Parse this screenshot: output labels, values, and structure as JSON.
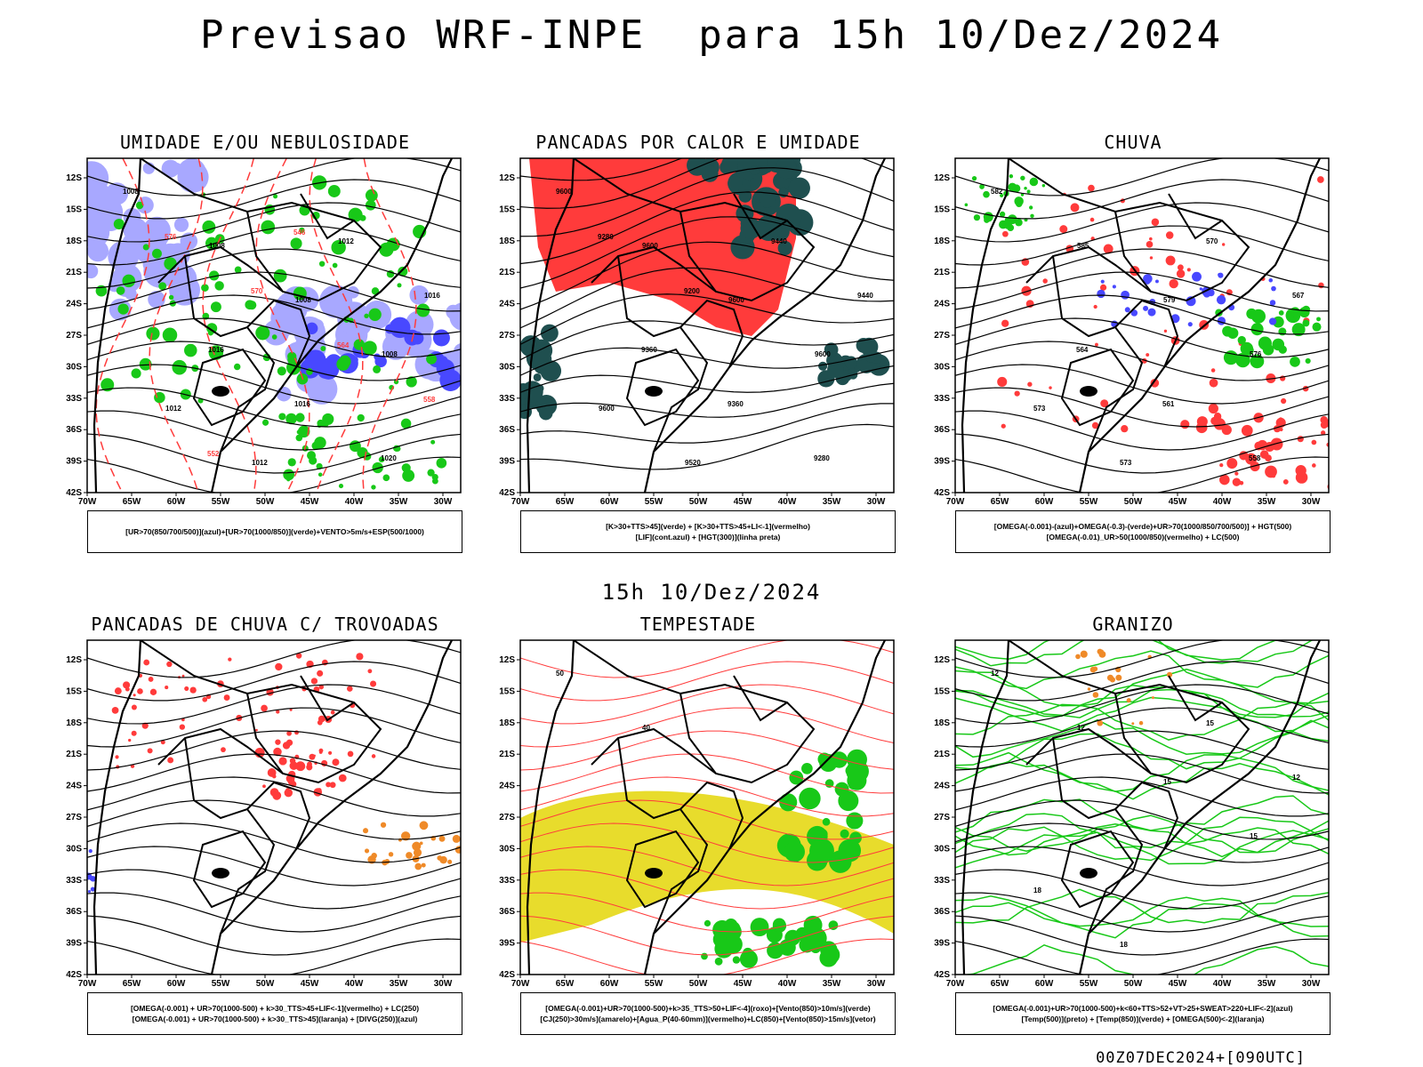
{
  "header": {
    "title": "Previsao WRF-INPE  para 15h 10/Dez/2024",
    "middle_time": "15h 10/Dez/2024",
    "run_stamp": "00Z07DEC2024+[090UTC]"
  },
  "axes": {
    "lat_labels": [
      "12S",
      "15S",
      "18S",
      "21S",
      "24S",
      "27S",
      "30S",
      "33S",
      "36S",
      "39S",
      "42S"
    ],
    "lon_labels": [
      "70W",
      "65W",
      "60W",
      "55W",
      "50W",
      "45W",
      "40W",
      "35W",
      "30W"
    ]
  },
  "panels": [
    {
      "id": "umidade",
      "title": "UMIDADE E/OU NEBULOSIDADE",
      "legend": [
        "[UR>70(850/700/500)](azul)+[UR>70(1000/850)](verde)+VENTO>5m/s+ESP(500/1000)"
      ],
      "contour_labels": [
        "1008",
        "1008",
        "1008",
        "1008",
        "1012",
        "1012",
        "1012",
        "1016",
        "1016",
        "1016",
        "1020",
        "576",
        "570",
        "564",
        "558",
        "552",
        "546"
      ]
    },
    {
      "id": "pancadas_calor",
      "title": "PANCADAS POR CALOR E UMIDADE",
      "legend": [
        "[K>30+TTS>45](verde) + [K>30+TTS>45+LI<-1](vermelho)",
        "[LIF](cont.azul) + [HGT(300)](linha preta)"
      ],
      "contour_labels": [
        "9600",
        "9600",
        "9600",
        "9600",
        "9600",
        "9520",
        "9440",
        "9440",
        "9360",
        "9360",
        "9280",
        "9280",
        "9200"
      ]
    },
    {
      "id": "chuva",
      "title": "CHUVA",
      "legend": [
        "[OMEGA(-0.001)-(azul)+OMEGA(-0.3)-(verde)+UR>70(1000/850/700/500)] + HGT(500)",
        "[OMEGA(-0.01)_UR>50(1000/850)(vermelho) + LC(500)"
      ],
      "contour_labels": [
        "582",
        "585",
        "579",
        "576",
        "573",
        "573",
        "570",
        "567",
        "564",
        "561",
        "558"
      ]
    },
    {
      "id": "pancadas_trovoadas",
      "title": "PANCADAS DE CHUVA C/ TROVOADAS",
      "legend": [
        "[OMEGA(-0.001) + UR>70(1000-500) + k>30_TTS>45+LIF<-1](vermelho) + LC(250)",
        "[OMEGA(-0.001) + UR>70(1000-500) + k>30_TTS>45](laranja) + [DIVG(250)](azul)"
      ],
      "contour_labels": []
    },
    {
      "id": "tempestade",
      "title": "TEMPESTADE",
      "legend": [
        "[OMEGA(-0.001)+UR>70(1000-500)+k>35_TTS>50+LIF<-4](roxo)+[Vento(850)>10m/s](verde)",
        "[CJ(250)>30m/s](amarelo)+[Agua_P(40-60mm)](vermelho)+LC(850)+[Vento(850)>15m/s](vetor)"
      ],
      "contour_labels": [
        "50",
        "40"
      ]
    },
    {
      "id": "granizo",
      "title": "GRANIZO",
      "legend": [
        "[OMEGA(-0.001)+UR>70(1000-500)+k<60+TTS>52+VT>25+SWEAT>220+LIF<-2](azul)",
        "[Temp(500)](preto) + [Temp(850)](verde) + [OMEGA(500)<-2](laranja)"
      ],
      "contour_labels": [
        "12",
        "12",
        "15",
        "15",
        "18",
        "18",
        "15",
        "12"
      ]
    }
  ],
  "colors": {
    "red": "#ff3b3b",
    "green": "#18c818",
    "blue": "#4848ff",
    "light_blue": "#a8a8ff",
    "dark_teal": "#1f4f4f",
    "orange": "#ef8a28",
    "yellow": "#e8dc2c",
    "black": "#000000",
    "purple": "#b000d0"
  }
}
